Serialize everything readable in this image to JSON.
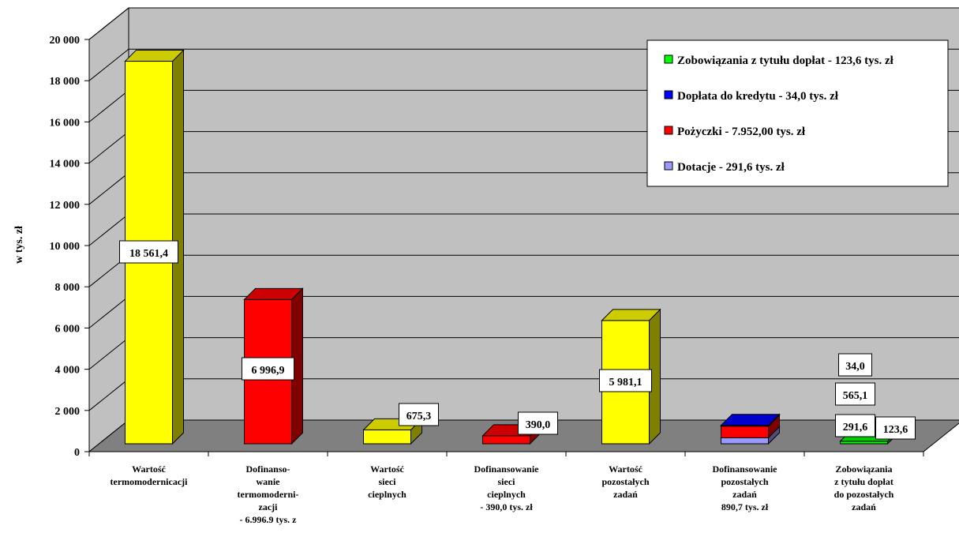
{
  "chart_data": {
    "type": "bar",
    "ylabel": "w tys. zł",
    "ylim": [
      0,
      20000
    ],
    "y_ticks": [
      "0",
      "2 000",
      "4 000",
      "6 000",
      "8 000",
      "10 000",
      "12 000",
      "14 000",
      "16 000",
      "18 000",
      "20 000"
    ],
    "categories": [
      [
        "Wartość",
        "termomodernicacji"
      ],
      [
        "Dofinanso-",
        "wanie",
        "termomoderni-",
        "zacji",
        "- 6.996.9 tys. z"
      ],
      [
        "Wartość",
        "sieci",
        "cieplnych"
      ],
      [
        "Dofinansowanie",
        "sieci",
        "cieplnych",
        "- 390,0 tys. zł"
      ],
      [
        "Wartość",
        "pozostałych",
        "zadań"
      ],
      [
        "Dofinansowanie",
        "pozostałych",
        "zadań",
        "890,7 tys. zł"
      ],
      [
        "Zobowiązania",
        "z tytułu dopłat",
        "do pozostałych",
        "zadań"
      ]
    ],
    "legend_position": "top-right",
    "series": [
      {
        "name": "Zobowiązania z tytułu dopłat - 123,6 tys. zł",
        "color": "#00ff00",
        "values": [
          0,
          0,
          0,
          0,
          0,
          0,
          123.6
        ]
      },
      {
        "name": "Dopłata do kredytu - 34,0 tys. zł",
        "color": "#0000ff",
        "values": [
          0,
          0,
          0,
          0,
          0,
          34.0,
          0
        ]
      },
      {
        "name": "Pożyczki - 7.952,00 tys. zł",
        "color": "#ff0000",
        "values": [
          0,
          6996.9,
          0,
          390.0,
          0,
          565.1,
          0
        ]
      },
      {
        "name": "Dotacje - 291,6 tys. zł",
        "color": "#9999ff",
        "values": [
          0,
          0,
          0,
          0,
          0,
          291.6,
          0
        ]
      },
      {
        "name": "",
        "color": "#ffff00",
        "values": [
          18561.4,
          0,
          675.3,
          0,
          5981.1,
          0,
          0
        ]
      }
    ],
    "data_labels": [
      {
        "text": "18 561,4",
        "category": 0
      },
      {
        "text": "6 996,9",
        "category": 1
      },
      {
        "text": "675,3",
        "category": 2
      },
      {
        "text": "390,0",
        "category": 3
      },
      {
        "text": "5 981,1",
        "category": 4
      },
      {
        "text": "34,0",
        "category": 5
      },
      {
        "text": "565,1",
        "category": 5
      },
      {
        "text": "291,6",
        "category": 5
      },
      {
        "text": "123,6",
        "category": 6
      }
    ],
    "colors": {
      "wall": "#c0c0c0",
      "floor": "#808080",
      "yellow": "#ffff00",
      "red": "#ff0000",
      "blue": "#0000ff",
      "lavender": "#9999ff",
      "green": "#00ff00"
    }
  }
}
